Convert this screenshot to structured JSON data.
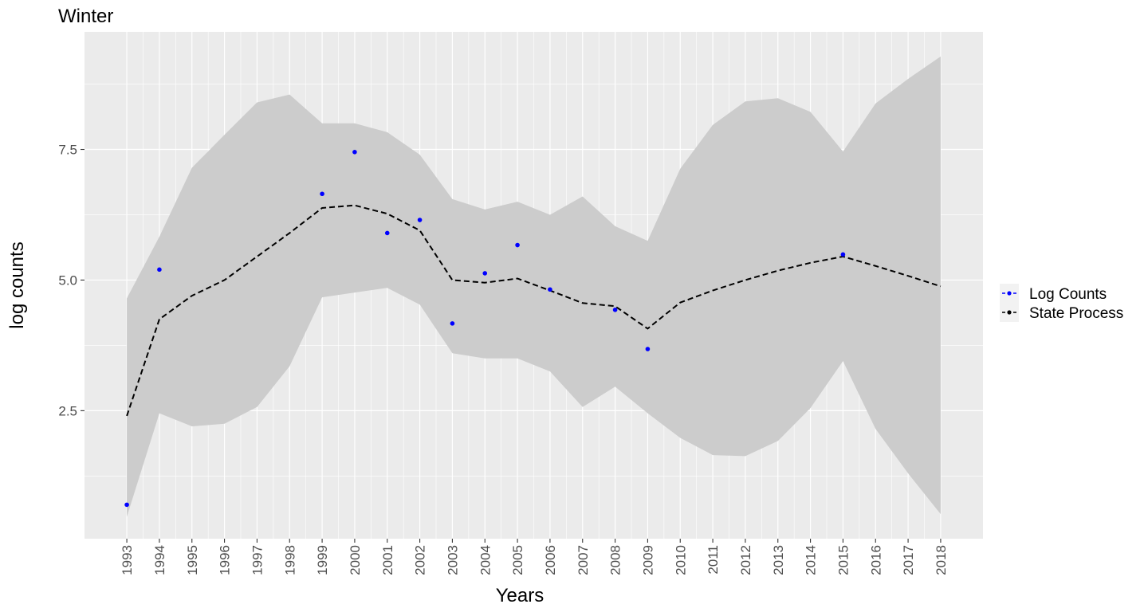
{
  "chart_data": {
    "type": "line",
    "title": "Winter",
    "xlabel": "Years",
    "ylabel": "log counts",
    "x": [
      1993,
      1994,
      1995,
      1996,
      1997,
      1998,
      1999,
      2000,
      2001,
      2002,
      2003,
      2004,
      2005,
      2006,
      2007,
      2008,
      2009,
      2010,
      2011,
      2012,
      2013,
      2014,
      2015,
      2016,
      2017,
      2018
    ],
    "x_tick_labels": [
      "1993",
      "1994",
      "1995",
      "1996",
      "1997",
      "1998",
      "1999",
      "2000",
      "2001",
      "2002",
      "2003",
      "2004",
      "2005",
      "2006",
      "2007",
      "2008",
      "2009",
      "2010",
      "2011",
      "2012",
      "2013",
      "2014",
      "2015",
      "2016",
      "2017",
      "2018"
    ],
    "y_ticks": [
      2.5,
      5.0,
      7.5
    ],
    "y_tick_labels": [
      "2.5",
      "5.0",
      "7.5"
    ],
    "xlim": [
      1991.7,
      2019.3
    ],
    "ylim": [
      0.05,
      9.75
    ],
    "grid": true,
    "legend_position": "right",
    "series": [
      {
        "name": "Log Counts",
        "kind": "points",
        "color": "#0000ff",
        "points": [
          {
            "x": 1993,
            "y": 0.7
          },
          {
            "x": 1994,
            "y": 5.2
          },
          {
            "x": 1999,
            "y": 6.65
          },
          {
            "x": 2000,
            "y": 7.45
          },
          {
            "x": 2001,
            "y": 5.9
          },
          {
            "x": 2002,
            "y": 6.15
          },
          {
            "x": 2003,
            "y": 4.17
          },
          {
            "x": 2004,
            "y": 5.13
          },
          {
            "x": 2005,
            "y": 5.67
          },
          {
            "x": 2006,
            "y": 4.82
          },
          {
            "x": 2008,
            "y": 4.43
          },
          {
            "x": 2009,
            "y": 3.68
          },
          {
            "x": 2015,
            "y": 5.49
          }
        ]
      },
      {
        "name": "State Process",
        "kind": "dashed-line",
        "color": "#000000",
        "values": [
          2.4,
          4.25,
          4.7,
          5.0,
          5.45,
          5.9,
          6.38,
          6.43,
          6.27,
          5.95,
          5.0,
          4.95,
          5.03,
          4.8,
          4.56,
          4.5,
          4.07,
          4.57,
          4.8,
          5.0,
          5.18,
          5.33,
          5.45,
          5.27,
          5.08,
          4.88
        ]
      }
    ],
    "ribbon": {
      "color": "#cccccc",
      "upper": [
        4.65,
        5.83,
        7.15,
        7.78,
        8.4,
        8.55,
        8.0,
        8.0,
        7.83,
        7.4,
        6.55,
        6.35,
        6.5,
        6.25,
        6.6,
        6.03,
        5.75,
        7.13,
        7.97,
        8.42,
        8.48,
        8.22,
        7.46,
        8.38,
        8.85,
        9.28
      ],
      "lower": [
        0.47,
        2.45,
        2.2,
        2.25,
        2.57,
        3.35,
        4.67,
        4.76,
        4.85,
        4.53,
        3.6,
        3.5,
        3.5,
        3.25,
        2.57,
        2.96,
        2.45,
        1.98,
        1.65,
        1.63,
        1.92,
        2.55,
        3.45,
        2.15,
        1.3,
        0.52
      ]
    },
    "colors": {
      "panel_background": "#ebebeb",
      "grid_major": "#ffffff",
      "ribbon": "#cccccc",
      "points": "#0000ff",
      "line": "#000000",
      "legend_key_background": "#f2f2f2"
    }
  }
}
